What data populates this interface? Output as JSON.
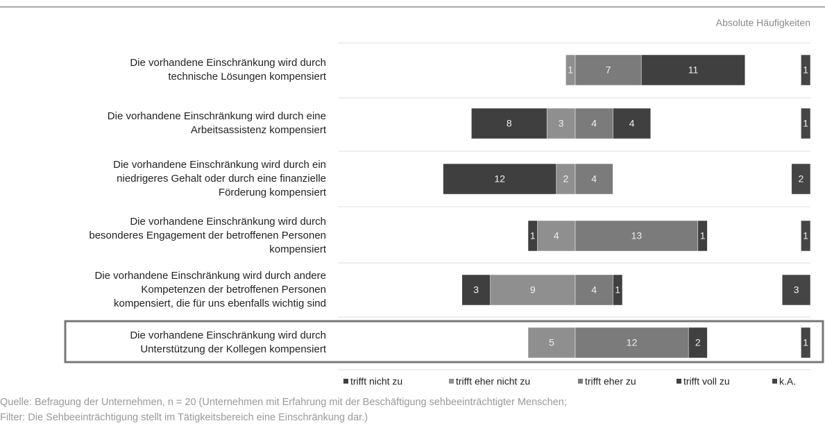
{
  "chart_data": {
    "type": "diverging-stacked-bar",
    "subtitle": "Absolute Häufigkeiten",
    "categories": [
      [
        "Die vorhandene Einschränkung wird durch",
        "technische Lösungen kompensiert"
      ],
      [
        "Die vorhandene Einschränkung wird durch eine",
        "Arbeitsassistenz kompensiert"
      ],
      [
        "Die vorhandene Einschränkung wird durch ein",
        "niedrigeres Gehalt oder durch eine finanzielle",
        "Förderung kompensiert"
      ],
      [
        "Die vorhandene Einschränkung wird durch",
        "besonderes Engagement der betroffenen Personen",
        "kompensiert"
      ],
      [
        "Die vorhandene Einschränkung wird durch andere",
        "Kompetenzen der betroffenen Personen",
        "kompensiert, die für uns ebenfalls wichtig sind"
      ],
      [
        "Die vorhandene Einschränkung wird durch",
        "Unterstützung der Kollegen kompensiert"
      ]
    ],
    "series": [
      {
        "name": "trifft nicht zu",
        "color": "#3f3f3f",
        "values": [
          0,
          8,
          12,
          1,
          3,
          0
        ]
      },
      {
        "name": "trifft eher nicht zu",
        "color": "#8f8f8f",
        "values": [
          1,
          3,
          2,
          4,
          9,
          5
        ]
      },
      {
        "name": "trifft eher zu",
        "color": "#7b7b7b",
        "values": [
          7,
          4,
          4,
          13,
          4,
          12
        ]
      },
      {
        "name": "trifft voll zu",
        "color": "#404040",
        "values": [
          11,
          4,
          0,
          1,
          1,
          2
        ]
      },
      {
        "name": "k.A.",
        "color": "#454545",
        "values": [
          1,
          1,
          2,
          1,
          3,
          1
        ]
      }
    ],
    "source": [
      "Quelle: Befragung der Unternehmen, n = 20 (Unternehmen mit Erfahrung mit der Beschäftigung sehbeeinträchtigter Menschen;",
      "Filter: Die Sehbeeinträchtigung stellt im Tätigkeitsbereich eine Einschränkung dar.)"
    ]
  }
}
